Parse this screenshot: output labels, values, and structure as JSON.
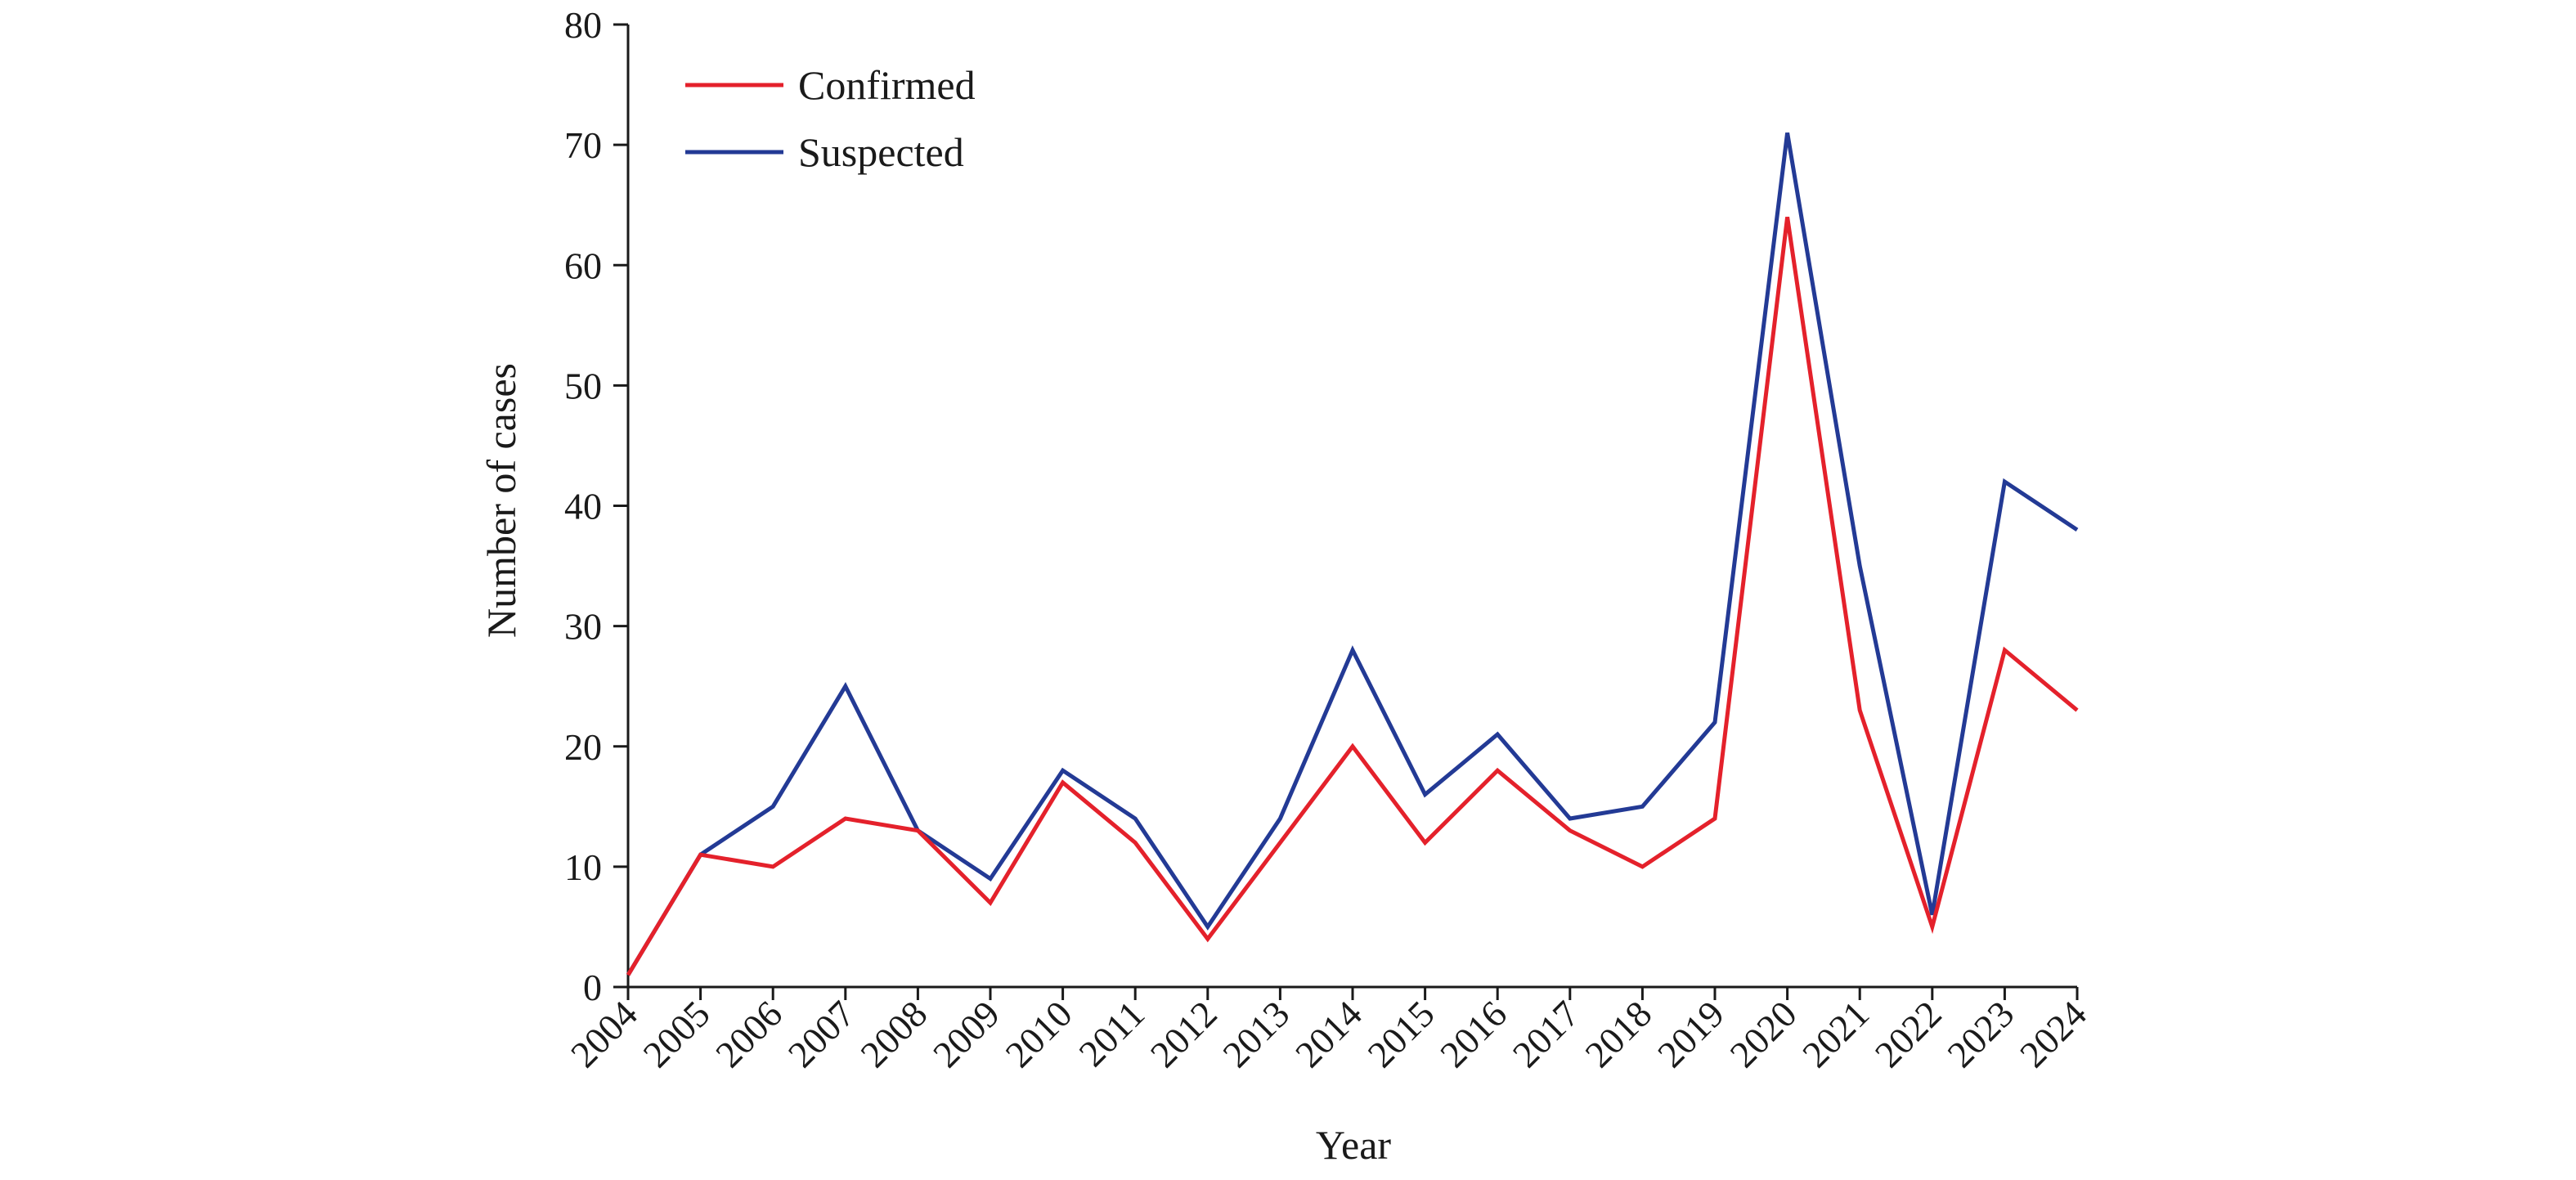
{
  "chart_data": {
    "type": "line",
    "title": "",
    "xlabel": "Year",
    "ylabel": "Number of cases",
    "x": [
      "2004",
      "2005",
      "2006",
      "2007",
      "2008",
      "2009",
      "2010",
      "2011",
      "2012",
      "2013",
      "2014",
      "2015",
      "2016",
      "2017",
      "2018",
      "2019",
      "2020",
      "2021",
      "2022",
      "2023",
      "2024"
    ],
    "ylim": [
      0,
      80
    ],
    "yticks": [
      "0",
      "10",
      "20",
      "30",
      "40",
      "50",
      "60",
      "70",
      "80"
    ],
    "grid": false,
    "legend_position": "top-left",
    "series": [
      {
        "name": "Confirmed",
        "color": "#e4212b",
        "values": [
          1,
          11,
          10,
          14,
          13,
          7,
          17,
          12,
          4,
          12,
          20,
          12,
          18,
          13,
          10,
          14,
          64,
          23,
          5,
          28,
          23
        ]
      },
      {
        "name": "Suspected",
        "color": "#233a95",
        "values": [
          1,
          11,
          15,
          25,
          13,
          9,
          18,
          14,
          5,
          14,
          28,
          16,
          21,
          14,
          15,
          22,
          71,
          35,
          6,
          42,
          38
        ]
      }
    ]
  }
}
